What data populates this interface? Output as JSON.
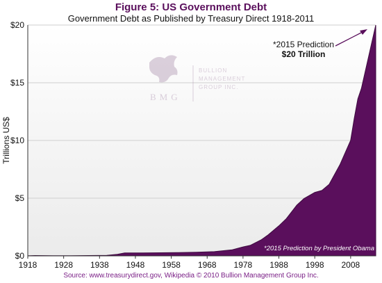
{
  "chart_data": {
    "type": "area",
    "title": "Figure 5: US Government Debt",
    "subtitle": "Government Debt as Published by Treasury Direct 1918-2011",
    "ylabel": "Trillions US$",
    "xlabel": "",
    "xlim": [
      1918,
      2015
    ],
    "ylim": [
      0,
      20
    ],
    "x_ticks": [
      1918,
      1928,
      1938,
      1948,
      1958,
      1968,
      1978,
      1988,
      1998,
      2008
    ],
    "y_ticks": [
      0,
      5,
      10,
      15,
      20
    ],
    "y_tick_labels": [
      "$0",
      "$5",
      "$10",
      "$15",
      "$20"
    ],
    "grid": "horizontal",
    "series": [
      {
        "x": [
          1918,
          1920,
          1925,
          1930,
          1935,
          1940,
          1943,
          1945,
          1950,
          1955,
          1960,
          1965,
          1970,
          1975,
          1978,
          1980,
          1983,
          1985,
          1988,
          1990,
          1993,
          1995,
          1998,
          2000,
          2002,
          2005,
          2008,
          2009,
          2010,
          2011,
          2015
        ],
        "values": [
          0.01,
          0.03,
          0.02,
          0.02,
          0.03,
          0.05,
          0.14,
          0.26,
          0.26,
          0.27,
          0.29,
          0.32,
          0.37,
          0.53,
          0.78,
          0.91,
          1.38,
          1.82,
          2.6,
          3.2,
          4.4,
          4.97,
          5.5,
          5.67,
          6.2,
          7.9,
          10.0,
          11.9,
          13.6,
          14.5,
          20.0
        ],
        "color": "#5a0f5c"
      }
    ],
    "annotations": {
      "prediction_line1": "*2015 Prediction",
      "prediction_line2": "$20 Trillion",
      "footnote": "*2015 Prediction by President Obama"
    }
  },
  "watermark": {
    "initials": "BMG",
    "line1": "BULLION",
    "line2": "MANAGEMENT",
    "line3": "GROUP INC."
  },
  "source": "Source: www.treasurydirect.gov, Wikipedia © 2010 Bullion Management Group Inc.",
  "colors": {
    "area": "#5a0f5c",
    "title": "#5a0f5c",
    "source": "#7a1f86",
    "grid": "#cfcfcf"
  }
}
